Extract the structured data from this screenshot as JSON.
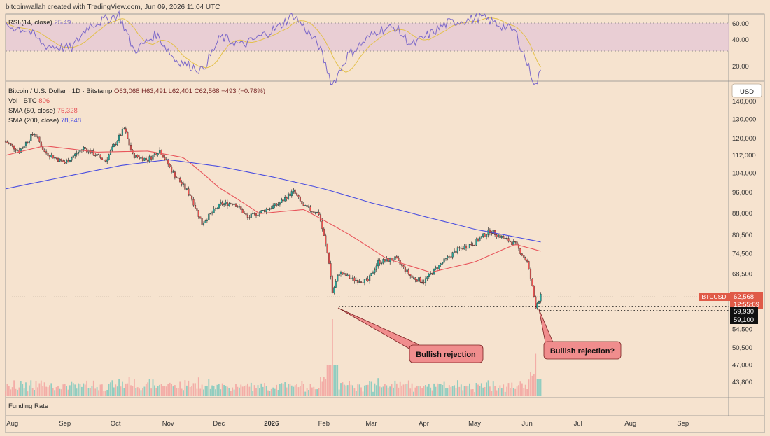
{
  "header": {
    "credit": "bitcoinwallah created with TradingView.com, Jun 09, 2026 11:04 UTC"
  },
  "rsi": {
    "label": "RSI (14, close)",
    "value": "25.49",
    "ticks": [
      "60.00",
      "40.00",
      "20.00"
    ],
    "color": "#7b68c9",
    "ma_color": "#e3c04a"
  },
  "legend": {
    "title": "Bitcoin / U.S. Dollar · 1D · Bitstamp",
    "ohlc": "O63,068 H63,491 L62,401 C62,568 −493 (−0.78%)",
    "vol_label": "Vol · BTC",
    "vol_value": "806",
    "sma50_label": "SMA (50, close)",
    "sma50_value": "75,328",
    "sma200_label": "SMA (200, close)",
    "sma200_value": "78,248"
  },
  "currency": "USD",
  "price_tag": {
    "symbol": "BTCUSD",
    "price": "62,568",
    "countdown": "12:55:09"
  },
  "level_tags": [
    "59,930",
    "59,100"
  ],
  "funding_label": "Funding Rate",
  "annotations": [
    "Bullish rejection",
    "Bullish rejection?"
  ],
  "colors": {
    "up": "#26a69a",
    "down": "#ef5350",
    "sma50": "#e8555b",
    "sma200": "#4a4ee0",
    "background": "#f6e3cf"
  },
  "chart_data": {
    "type": "candlestick",
    "scale": "log",
    "ylim": [
      42000,
      150000
    ],
    "y_ticks": [
      "140,000",
      "130,000",
      "120,000",
      "112,000",
      "104,000",
      "96,000",
      "88,000",
      "80,500",
      "74,500",
      "68,500",
      "59,100",
      "54,500",
      "50,500",
      "47,000",
      "43,800"
    ],
    "x_ticks": [
      "Aug",
      "Sep",
      "Oct",
      "Nov",
      "Dec",
      "2026",
      "Feb",
      "Mar",
      "Apr",
      "May",
      "Jun",
      "Jul",
      "Aug",
      "Sep"
    ],
    "x_range": [
      "2025-07-28",
      "2026-09-28"
    ],
    "last_date": "2026-06-09",
    "price_keypoints": [
      [
        "2025-07-28",
        118500
      ],
      [
        "2025-08-05",
        114000
      ],
      [
        "2025-08-14",
        123000
      ],
      [
        "2025-08-20",
        113500
      ],
      [
        "2025-09-01",
        108500
      ],
      [
        "2025-09-12",
        115500
      ],
      [
        "2025-09-25",
        109500
      ],
      [
        "2025-10-06",
        125000
      ],
      [
        "2025-10-11",
        112000
      ],
      [
        "2025-10-20",
        110000
      ],
      [
        "2025-10-27",
        114500
      ],
      [
        "2025-11-04",
        104000
      ],
      [
        "2025-11-14",
        95000
      ],
      [
        "2025-11-21",
        84500
      ],
      [
        "2025-12-02",
        91500
      ],
      [
        "2025-12-10",
        92000
      ],
      [
        "2025-12-18",
        86500
      ],
      [
        "2026-01-05",
        91500
      ],
      [
        "2026-01-14",
        96500
      ],
      [
        "2026-01-20",
        90500
      ],
      [
        "2026-01-29",
        88000
      ],
      [
        "2026-02-04",
        72000
      ],
      [
        "2026-02-06",
        63500
      ],
      [
        "2026-02-10",
        69000
      ],
      [
        "2026-02-18",
        67000
      ],
      [
        "2026-02-27",
        66500
      ],
      [
        "2026-03-05",
        72000
      ],
      [
        "2026-03-15",
        73000
      ],
      [
        "2026-03-25",
        67500
      ],
      [
        "2026-04-01",
        66500
      ],
      [
        "2026-04-10",
        71000
      ],
      [
        "2026-04-20",
        75500
      ],
      [
        "2026-05-01",
        78000
      ],
      [
        "2026-05-10",
        82000
      ],
      [
        "2026-05-18",
        79500
      ],
      [
        "2026-05-25",
        77500
      ],
      [
        "2026-06-01",
        72000
      ],
      [
        "2026-06-06",
        60000
      ],
      [
        "2026-06-09",
        62568
      ]
    ],
    "sma50_keypoints": [
      [
        "2025-07-28",
        112000
      ],
      [
        "2025-08-20",
        116500
      ],
      [
        "2025-09-20",
        113500
      ],
      [
        "2025-10-20",
        114000
      ],
      [
        "2025-11-10",
        111000
      ],
      [
        "2025-12-01",
        98000
      ],
      [
        "2025-12-25",
        88000
      ],
      [
        "2026-01-20",
        89500
      ],
      [
        "2026-02-15",
        81000
      ],
      [
        "2026-03-10",
        73000
      ],
      [
        "2026-04-05",
        69000
      ],
      [
        "2026-05-01",
        72000
      ],
      [
        "2026-05-25",
        77500
      ],
      [
        "2026-06-09",
        75328
      ]
    ],
    "sma200_keypoints": [
      [
        "2025-07-28",
        97500
      ],
      [
        "2025-09-01",
        102500
      ],
      [
        "2025-10-05",
        107500
      ],
      [
        "2025-11-01",
        110000
      ],
      [
        "2025-12-01",
        107000
      ],
      [
        "2026-01-01",
        102500
      ],
      [
        "2026-02-01",
        97500
      ],
      [
        "2026-03-01",
        92000
      ],
      [
        "2026-04-01",
        87000
      ],
      [
        "2026-05-01",
        82500
      ],
      [
        "2026-06-09",
        78248
      ]
    ],
    "rsi_keypoints": [
      [
        "2025-07-28",
        58
      ],
      [
        "2025-08-10",
        55
      ],
      [
        "2025-08-20",
        44
      ],
      [
        "2025-09-05",
        42
      ],
      [
        "2025-09-15",
        58
      ],
      [
        "2025-10-03",
        66
      ],
      [
        "2025-10-12",
        40
      ],
      [
        "2025-10-25",
        52
      ],
      [
        "2025-11-05",
        34
      ],
      [
        "2025-11-21",
        26
      ],
      [
        "2025-12-02",
        50
      ],
      [
        "2025-12-15",
        44
      ],
      [
        "2026-01-05",
        57
      ],
      [
        "2026-01-14",
        66
      ],
      [
        "2026-01-29",
        44
      ],
      [
        "2026-02-06",
        16
      ],
      [
        "2026-02-15",
        37
      ],
      [
        "2026-03-05",
        55
      ],
      [
        "2026-03-15",
        57
      ],
      [
        "2026-03-25",
        44
      ],
      [
        "2026-04-15",
        60
      ],
      [
        "2026-05-05",
        64
      ],
      [
        "2026-05-15",
        59
      ],
      [
        "2026-05-25",
        54
      ],
      [
        "2026-06-06",
        15
      ],
      [
        "2026-06-09",
        25.49
      ]
    ],
    "levels": [
      59930,
      59100
    ],
    "volume_spikes": [
      [
        "2026-02-06",
        1.0
      ],
      [
        "2026-06-06",
        0.55
      ]
    ]
  }
}
